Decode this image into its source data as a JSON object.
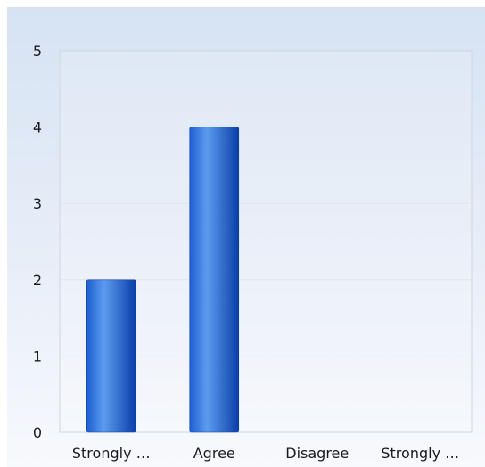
{
  "chart_data": {
    "type": "bar",
    "title": "",
    "xlabel": "",
    "ylabel": "",
    "categories": [
      "Strongly …",
      "Agree",
      "Disagree",
      "Strongly …"
    ],
    "values": [
      2,
      4,
      0,
      0
    ],
    "ylim": [
      0,
      5
    ],
    "yticks": [
      0,
      1,
      2,
      3,
      4,
      5
    ],
    "ytick_labels": [
      "0",
      "1",
      "2",
      "3",
      "4",
      "5"
    ],
    "grid": true,
    "legend": "none",
    "colors": {
      "bar_dark": "#0b3fa8",
      "bar_light": "#5b9cf0",
      "grid": "#dfe4ea",
      "plot_border": "#cfd6de"
    }
  }
}
